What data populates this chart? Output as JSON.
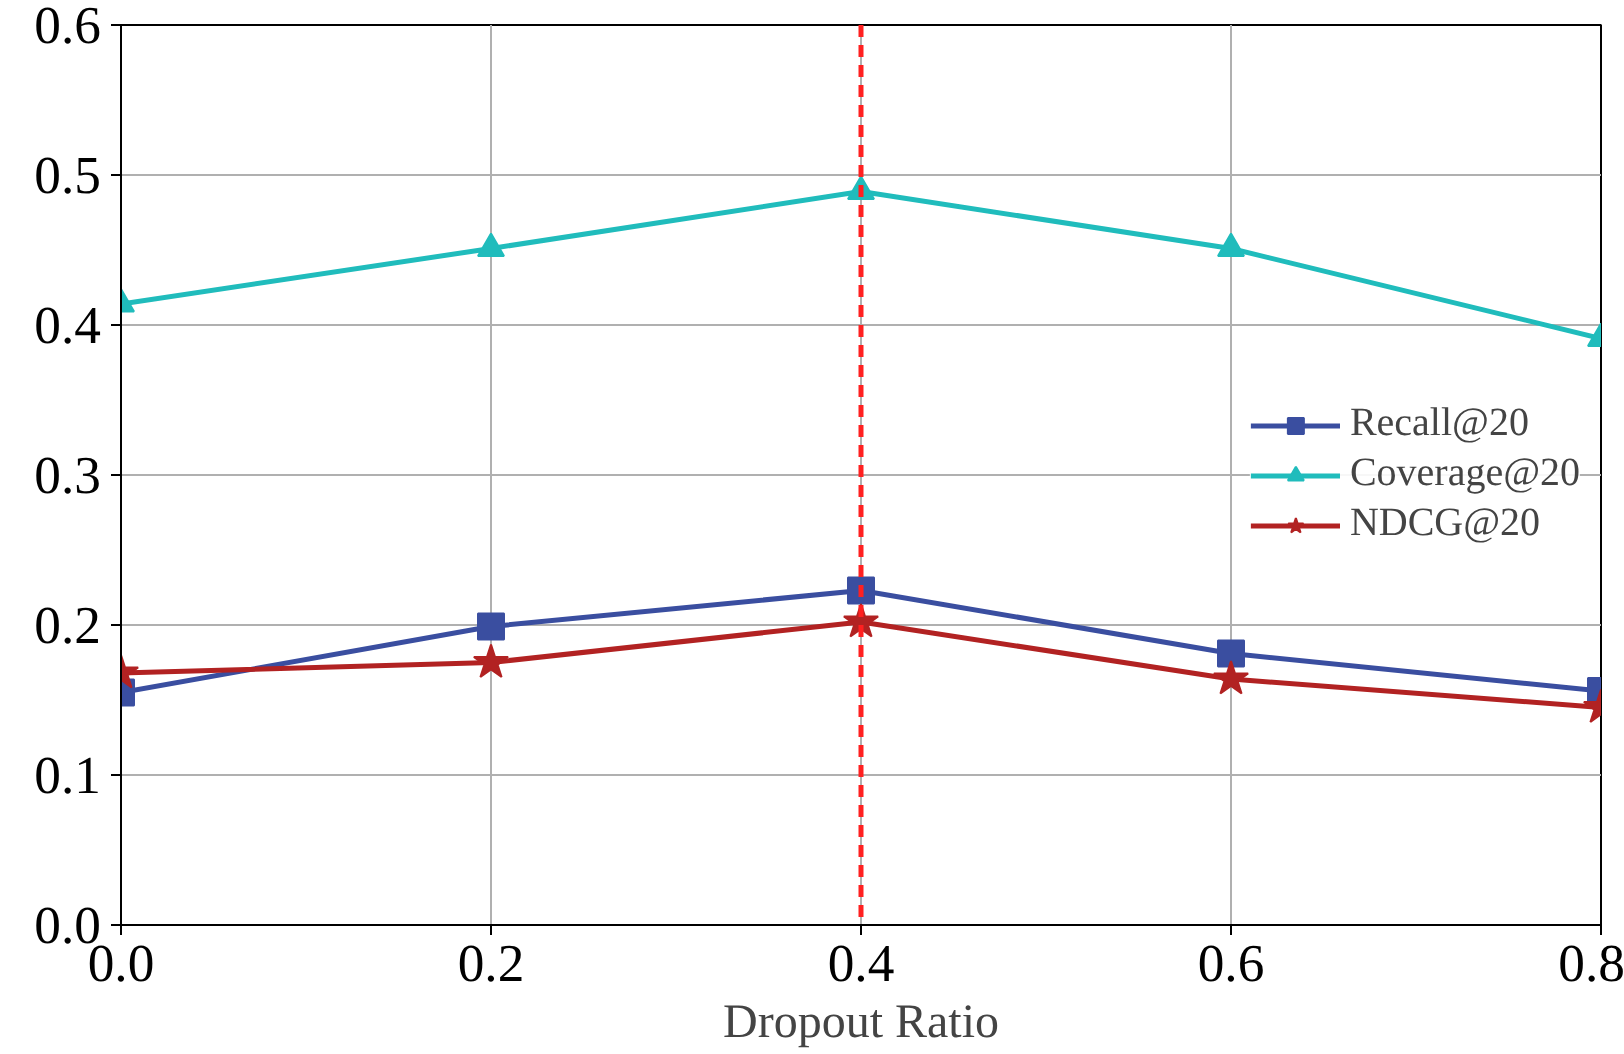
{
  "chart_data": {
    "type": "line",
    "xlabel": "Dropout Ratio",
    "x": [
      0.0,
      0.2,
      0.4,
      0.6,
      0.8
    ],
    "xlim": [
      0.0,
      0.8
    ],
    "xticks": [
      {
        "value": 0.0,
        "label": "0.0"
      },
      0.2,
      0.4,
      0.6,
      0.8
    ],
    "ylim": [
      0.0,
      0.6
    ],
    "yticks": [
      {
        "value": 0.0,
        "label": "0.0"
      },
      0.1,
      0.2,
      0.3,
      0.4,
      0.5,
      0.6
    ],
    "grid": true,
    "legend": "right",
    "line_style": "solid",
    "series": [
      {
        "name": "Recall@20",
        "color": "#3a4ea0",
        "marker": "square",
        "values": [
          0.155,
          0.199,
          0.223,
          0.181,
          0.156
        ]
      },
      {
        "name": "Coverage@20",
        "color": "#20bcbc",
        "marker": "triangle",
        "values": [
          0.414,
          0.451,
          0.489,
          0.451,
          0.391
        ]
      },
      {
        "name": "NDCG@20",
        "color": "#b22222",
        "marker": "star",
        "values": [
          0.168,
          0.175,
          0.202,
          0.164,
          0.145
        ]
      }
    ],
    "ref_lines": [
      {
        "axis": "x",
        "value": 0.4,
        "color": "#ff2020",
        "line_style": "dashed"
      }
    ]
  }
}
